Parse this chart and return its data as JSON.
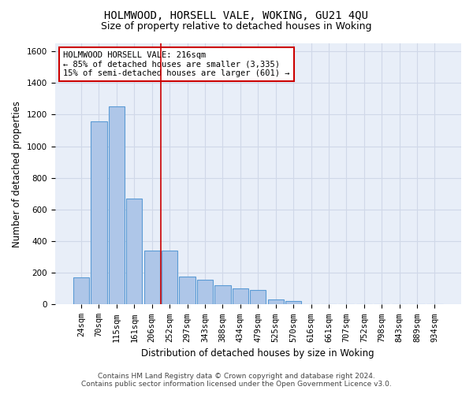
{
  "title": "HOLMWOOD, HORSELL VALE, WOKING, GU21 4QU",
  "subtitle": "Size of property relative to detached houses in Woking",
  "xlabel": "Distribution of detached houses by size in Woking",
  "ylabel": "Number of detached properties",
  "categories": [
    "24sqm",
    "70sqm",
    "115sqm",
    "161sqm",
    "206sqm",
    "252sqm",
    "297sqm",
    "343sqm",
    "388sqm",
    "434sqm",
    "479sqm",
    "525sqm",
    "570sqm",
    "616sqm",
    "661sqm",
    "707sqm",
    "752sqm",
    "798sqm",
    "843sqm",
    "889sqm",
    "934sqm"
  ],
  "values": [
    170,
    1155,
    1250,
    670,
    340,
    340,
    175,
    155,
    120,
    100,
    90,
    30,
    20,
    0,
    0,
    0,
    0,
    0,
    0,
    0,
    0
  ],
  "bar_color": "#aec6e8",
  "bar_edge_color": "#5b9bd5",
  "vline_x": 4.5,
  "vline_color": "#cc0000",
  "annotation_text": "HOLMWOOD HORSELL VALE: 216sqm\n← 85% of detached houses are smaller (3,335)\n15% of semi-detached houses are larger (601) →",
  "annotation_box_color": "#ffffff",
  "annotation_box_edge": "#cc0000",
  "ylim": [
    0,
    1650
  ],
  "yticks": [
    0,
    200,
    400,
    600,
    800,
    1000,
    1200,
    1400,
    1600
  ],
  "grid_color": "#d0d8e8",
  "bg_color": "#e8eef8",
  "footer_line1": "Contains HM Land Registry data © Crown copyright and database right 2024.",
  "footer_line2": "Contains public sector information licensed under the Open Government Licence v3.0.",
  "title_fontsize": 10,
  "subtitle_fontsize": 9,
  "axis_label_fontsize": 8.5,
  "tick_fontsize": 7.5,
  "annotation_fontsize": 7.5,
  "footer_fontsize": 6.5
}
